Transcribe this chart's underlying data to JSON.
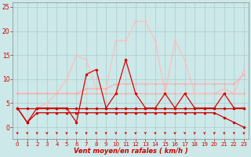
{
  "x": [
    0,
    1,
    2,
    3,
    4,
    5,
    6,
    7,
    8,
    9,
    10,
    11,
    12,
    13,
    14,
    15,
    16,
    17,
    18,
    19,
    20,
    21,
    22,
    23
  ],
  "series": [
    {
      "label": "line_flat7",
      "color": "#ffaaaa",
      "alpha": 1.0,
      "linewidth": 0.8,
      "markersize": 2.0,
      "values": [
        7,
        7,
        7,
        7,
        7,
        7,
        7,
        7,
        7,
        7,
        7,
        7,
        7,
        7,
        7,
        7,
        7,
        7,
        7,
        7,
        7,
        7,
        7,
        7
      ]
    },
    {
      "label": "line_light_rising",
      "color": "#ffbbbb",
      "alpha": 1.0,
      "linewidth": 0.8,
      "markersize": 2.0,
      "values": [
        4,
        1,
        4,
        5,
        7,
        10,
        15,
        14,
        8,
        8,
        18,
        18,
        22,
        22,
        18,
        7,
        18,
        14,
        7,
        7,
        7,
        8,
        7,
        12
      ]
    },
    {
      "label": "line_flat4_light",
      "color": "#ffbbbb",
      "alpha": 1.0,
      "linewidth": 0.8,
      "markersize": 2.0,
      "values": [
        4,
        4,
        4,
        4,
        4,
        4,
        4,
        4,
        4,
        4,
        4,
        4,
        4,
        4,
        4,
        4,
        4,
        4,
        4,
        4,
        4,
        4,
        4,
        4
      ]
    },
    {
      "label": "line_slowly_rising",
      "color": "#ffaaaa",
      "alpha": 1.0,
      "linewidth": 0.8,
      "markersize": 2.0,
      "values": [
        7,
        7,
        7,
        7,
        7,
        7,
        7,
        8,
        8,
        8,
        9,
        9,
        9,
        9,
        9,
        9,
        9,
        9,
        9,
        9,
        9,
        9,
        9,
        11
      ]
    },
    {
      "label": "line_bold_spiky",
      "color": "#dd0000",
      "alpha": 1.0,
      "linewidth": 0.9,
      "markersize": 2.5,
      "values": [
        4,
        1,
        4,
        4,
        4,
        4,
        1,
        11,
        12,
        4,
        7,
        14,
        7,
        4,
        4,
        7,
        4,
        7,
        4,
        4,
        4,
        7,
        4,
        4
      ]
    },
    {
      "label": "line_flat4_dark",
      "color": "#cc0000",
      "alpha": 1.0,
      "linewidth": 0.9,
      "markersize": 2.5,
      "values": [
        4,
        4,
        4,
        4,
        4,
        4,
        4,
        4,
        4,
        4,
        4,
        4,
        4,
        4,
        4,
        4,
        4,
        4,
        4,
        4,
        4,
        4,
        4,
        4
      ]
    },
    {
      "label": "line_decreasing",
      "color": "#cc0000",
      "alpha": 1.0,
      "linewidth": 0.9,
      "markersize": 2.5,
      "values": [
        4,
        1,
        3,
        3,
        3,
        3,
        3,
        3,
        3,
        3,
        3,
        3,
        3,
        3,
        3,
        3,
        3,
        3,
        3,
        3,
        3,
        2,
        1,
        0
      ]
    }
  ],
  "xlabel": "Vent moyen/en rafales ( km/h )",
  "xlim": [
    -0.5,
    23.5
  ],
  "ylim": [
    -2.5,
    26
  ],
  "yticks": [
    0,
    5,
    10,
    15,
    20,
    25
  ],
  "xticks": [
    0,
    1,
    2,
    3,
    4,
    5,
    6,
    7,
    8,
    9,
    10,
    11,
    12,
    13,
    14,
    15,
    16,
    17,
    18,
    19,
    20,
    21,
    22,
    23
  ],
  "bg_color": "#cce8e8",
  "grid_color": "#aacccc",
  "axis_label_color": "#cc0000",
  "tick_color": "#cc0000",
  "arrow_color": "#cc0000"
}
